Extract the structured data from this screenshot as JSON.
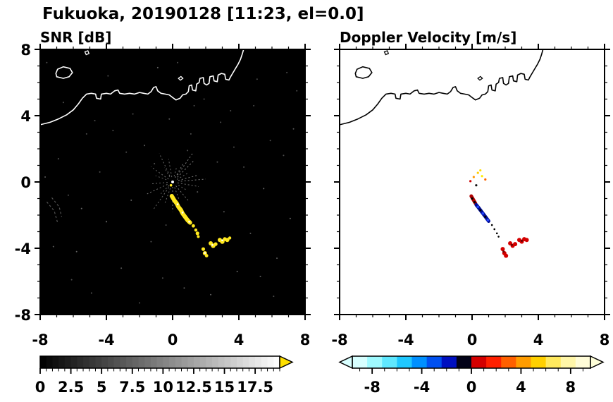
{
  "header": {
    "title": "Fukuoka, 20190128 [11:23, el=0.0]"
  },
  "chart_data": {
    "type": "heatmap",
    "title": "Fukuoka, 20190128 [11:23, el=0.0]",
    "panels": [
      {
        "name": "snr",
        "title": "SNR [dB]",
        "xlim": [
          -8,
          8
        ],
        "ylim": [
          -8,
          8
        ],
        "xticks": [
          -8,
          -4,
          0,
          4,
          8
        ],
        "yticks": [
          -8,
          -4,
          0,
          4,
          8
        ],
        "minor_step": 1,
        "show_ytick_labels": true,
        "background": "#000000",
        "coast_color": "#ffffff",
        "colorbar": {
          "range": [
            0,
            19.5
          ],
          "gradient": [
            "#000000",
            "#ffffff"
          ],
          "segments": 39,
          "ticks": [
            0,
            2.5,
            5,
            7.5,
            10,
            12.5,
            15,
            17.5
          ],
          "minor_step": 0.5,
          "arrow_right_color": "#ffe000",
          "outline": "#000000"
        }
      },
      {
        "name": "velocity",
        "title": "Doppler Velocity [m/s]",
        "xlim": [
          -8,
          8
        ],
        "ylim": [
          -8,
          8
        ],
        "xticks": [
          -8,
          -4,
          0,
          4,
          8
        ],
        "yticks": [
          -8,
          -4,
          0,
          4,
          8
        ],
        "minor_step": 1,
        "show_ytick_labels": false,
        "background": "#ffffff",
        "coast_color": "#000000",
        "colorbar": {
          "range": [
            -9.6,
            9.6
          ],
          "colors": [
            "#d7ffff",
            "#9ffaff",
            "#5fe8ff",
            "#1fc8ff",
            "#0090ff",
            "#0050f0",
            "#0010c0",
            "#020218",
            "#d40000",
            "#ff2000",
            "#ff6000",
            "#ff9c00",
            "#ffd000",
            "#ffe95e",
            "#fff6a8",
            "#fffcd8"
          ],
          "ticks": [
            -8,
            -4,
            0,
            4,
            8
          ],
          "minor_step": 1,
          "arrow_left_color": "#d9ffff",
          "arrow_right_color": "#ffffd9",
          "outline": "#000000"
        }
      }
    ],
    "coastline": {
      "main": [
        [
          -8.0,
          3.45
        ],
        [
          -7.4,
          3.6
        ],
        [
          -6.9,
          3.8
        ],
        [
          -6.4,
          4.05
        ],
        [
          -6.0,
          4.35
        ],
        [
          -5.7,
          4.7
        ],
        [
          -5.45,
          5.05
        ],
        [
          -5.2,
          5.3
        ],
        [
          -4.9,
          5.35
        ],
        [
          -4.65,
          5.3
        ],
        [
          -4.6,
          5.05
        ],
        [
          -4.35,
          5.0
        ],
        [
          -4.3,
          5.3
        ],
        [
          -4.0,
          5.35
        ],
        [
          -3.75,
          5.3
        ],
        [
          -3.5,
          5.5
        ],
        [
          -3.3,
          5.55
        ],
        [
          -3.2,
          5.35
        ],
        [
          -2.9,
          5.3
        ],
        [
          -2.6,
          5.35
        ],
        [
          -2.3,
          5.3
        ],
        [
          -2.0,
          5.4
        ],
        [
          -1.75,
          5.35
        ],
        [
          -1.5,
          5.3
        ],
        [
          -1.3,
          5.45
        ],
        [
          -1.15,
          5.7
        ],
        [
          -1.0,
          5.75
        ],
        [
          -0.9,
          5.5
        ],
        [
          -0.7,
          5.35
        ],
        [
          -0.45,
          5.3
        ],
        [
          -0.2,
          5.25
        ],
        [
          0.0,
          5.1
        ],
        [
          0.2,
          4.95
        ],
        [
          0.45,
          5.05
        ],
        [
          0.6,
          5.25
        ],
        [
          0.8,
          5.3
        ],
        [
          0.95,
          5.45
        ],
        [
          1.0,
          5.8
        ],
        [
          1.15,
          5.85
        ],
        [
          1.2,
          5.55
        ],
        [
          1.4,
          5.5
        ],
        [
          1.45,
          5.9
        ],
        [
          1.6,
          6.0
        ],
        [
          1.65,
          6.25
        ],
        [
          1.85,
          6.3
        ],
        [
          1.9,
          5.95
        ],
        [
          2.05,
          5.85
        ],
        [
          2.2,
          5.95
        ],
        [
          2.25,
          6.35
        ],
        [
          2.45,
          6.4
        ],
        [
          2.5,
          6.1
        ],
        [
          2.7,
          6.05
        ],
        [
          2.75,
          6.45
        ],
        [
          2.95,
          6.55
        ],
        [
          3.15,
          6.5
        ],
        [
          3.2,
          6.2
        ],
        [
          3.4,
          6.15
        ],
        [
          3.5,
          6.35
        ],
        [
          3.65,
          6.6
        ],
        [
          3.8,
          6.85
        ],
        [
          3.95,
          7.1
        ],
        [
          4.1,
          7.4
        ],
        [
          4.2,
          7.7
        ],
        [
          4.3,
          8.05
        ]
      ],
      "island": [
        [
          -7.0,
          6.35
        ],
        [
          -6.6,
          6.25
        ],
        [
          -6.25,
          6.35
        ],
        [
          -6.05,
          6.6
        ],
        [
          -6.2,
          6.85
        ],
        [
          -6.6,
          6.95
        ],
        [
          -6.95,
          6.8
        ],
        [
          -7.05,
          6.55
        ],
        [
          -7.0,
          6.35
        ]
      ],
      "islets": [
        [
          [
            -5.3,
            7.85
          ],
          [
            -5.12,
            7.92
          ],
          [
            -5.05,
            7.75
          ],
          [
            -5.22,
            7.68
          ],
          [
            -5.3,
            7.85
          ]
        ],
        [
          [
            0.35,
            6.25
          ],
          [
            0.5,
            6.36
          ],
          [
            0.62,
            6.25
          ],
          [
            0.47,
            6.14
          ],
          [
            0.35,
            6.25
          ]
        ]
      ]
    },
    "snr_layer": {
      "color": "#ffe81e",
      "streak": [
        [
          -0.05,
          -0.85
        ],
        [
          0.1,
          -1.1
        ],
        [
          0.25,
          -1.3
        ],
        [
          0.35,
          -1.5
        ],
        [
          0.5,
          -1.7
        ],
        [
          0.6,
          -1.9
        ],
        [
          0.75,
          -2.1
        ],
        [
          0.9,
          -2.3
        ],
        [
          1.05,
          -2.45
        ]
      ],
      "blobs": [
        [
          1.25,
          -2.65,
          2.4
        ],
        [
          1.4,
          -2.9,
          2.2
        ],
        [
          1.5,
          -3.1,
          2.6
        ],
        [
          1.55,
          -3.3,
          2.0
        ],
        [
          1.85,
          -4.05,
          2.6
        ],
        [
          1.95,
          -4.3,
          3.0
        ],
        [
          2.05,
          -4.45,
          2.4
        ],
        [
          2.3,
          -3.7,
          3.0
        ],
        [
          2.45,
          -3.85,
          3.2
        ],
        [
          2.6,
          -3.75,
          2.6
        ],
        [
          2.85,
          -3.5,
          3.0
        ],
        [
          3.0,
          -3.6,
          3.2
        ],
        [
          3.15,
          -3.45,
          2.8
        ],
        [
          3.3,
          -3.5,
          3.0
        ],
        [
          3.45,
          -3.38,
          2.2
        ]
      ],
      "white_flecks": [
        [
          0.3,
          -1.35
        ],
        [
          0.6,
          -1.85
        ],
        [
          1.0,
          -2.4
        ],
        [
          2.4,
          -3.8
        ],
        [
          3.0,
          -3.52
        ],
        [
          1.95,
          -4.28
        ]
      ],
      "speckle": [
        [
          -7.6,
          7.2,
          0.3
        ],
        [
          -6.9,
          1.4,
          0.35
        ],
        [
          -6.3,
          -0.8,
          0.3
        ],
        [
          -5.8,
          -4.2,
          0.4
        ],
        [
          -5.2,
          2.9,
          0.3
        ],
        [
          -4.9,
          -6.7,
          0.35
        ],
        [
          -4.4,
          0.6,
          0.3
        ],
        [
          -4.0,
          -2.4,
          0.45
        ],
        [
          -3.6,
          3.1,
          0.3
        ],
        [
          -3.1,
          -5.2,
          0.35
        ],
        [
          -2.8,
          1.8,
          0.3
        ],
        [
          -2.5,
          -1.1,
          0.4
        ],
        [
          -2.0,
          -7.3,
          0.3
        ],
        [
          -1.7,
          2.2,
          0.35
        ],
        [
          -1.3,
          -3.6,
          0.3
        ],
        [
          -0.9,
          6.9,
          0.4
        ],
        [
          -0.6,
          -5.8,
          0.3
        ],
        [
          -0.2,
          3.8,
          0.35
        ],
        [
          0.3,
          7.2,
          0.3
        ],
        [
          0.7,
          -6.4,
          0.4
        ],
        [
          1.1,
          2.9,
          0.3
        ],
        [
          1.5,
          -0.6,
          0.35
        ],
        [
          1.9,
          5.0,
          0.3
        ],
        [
          2.3,
          -6.8,
          0.4
        ],
        [
          2.7,
          1.2,
          0.3
        ],
        [
          3.1,
          -1.8,
          0.35
        ],
        [
          3.5,
          4.3,
          0.3
        ],
        [
          3.9,
          -5.4,
          0.4
        ],
        [
          4.3,
          0.9,
          0.3
        ],
        [
          4.7,
          -3.1,
          0.35
        ],
        [
          5.1,
          6.2,
          0.3
        ],
        [
          5.5,
          -0.4,
          0.4
        ],
        [
          5.9,
          2.5,
          0.3
        ],
        [
          6.3,
          -4.6,
          0.35
        ],
        [
          6.7,
          1.6,
          0.3
        ],
        [
          7.1,
          -2.2,
          0.4
        ],
        [
          7.5,
          5.5,
          0.3
        ],
        [
          -7.2,
          -3.9,
          0.35
        ],
        [
          -6.6,
          4.8,
          0.3
        ],
        [
          -5.5,
          -1.6,
          0.4
        ],
        [
          6.1,
          -6.9,
          0.3
        ],
        [
          7.3,
          3.2,
          0.35
        ],
        [
          -3.9,
          6.4,
          0.3
        ],
        [
          2.9,
          3.6,
          0.3
        ],
        [
          -1.1,
          1.1,
          0.35
        ],
        [
          0.9,
          1.9,
          0.3
        ],
        [
          4.9,
          4.6,
          0.3
        ],
        [
          -2.4,
          4.1,
          0.3
        ],
        [
          5.3,
          -5.7,
          0.35
        ],
        [
          -0.4,
          -2.6,
          0.3
        ],
        [
          1.3,
          4.6,
          0.3
        ],
        [
          -4.7,
          3.7,
          0.3
        ],
        [
          3.7,
          2.1,
          0.3
        ],
        [
          -6.1,
          -5.9,
          0.3
        ],
        [
          6.9,
          6.6,
          0.3
        ],
        [
          -7.7,
          0.3,
          0.35
        ]
      ],
      "rays": [
        [
          15,
          0.35,
          1.5,
          0.5
        ],
        [
          30,
          0.3,
          1.1,
          0.4
        ],
        [
          45,
          0.4,
          1.8,
          0.5
        ],
        [
          60,
          0.3,
          1.3,
          0.45
        ],
        [
          75,
          0.35,
          0.9,
          0.4
        ],
        [
          100,
          0.3,
          1.4,
          0.4
        ],
        [
          120,
          0.35,
          1.0,
          0.35
        ],
        [
          145,
          0.3,
          1.6,
          0.4
        ],
        [
          160,
          0.4,
          1.1,
          0.35
        ],
        [
          185,
          0.3,
          1.3,
          0.4
        ],
        [
          205,
          0.35,
          1.7,
          0.45
        ],
        [
          225,
          0.3,
          1.0,
          0.4
        ],
        [
          250,
          0.4,
          1.4,
          0.4
        ],
        [
          270,
          0.3,
          1.8,
          0.45
        ],
        [
          290,
          0.35,
          1.2,
          0.4
        ],
        [
          310,
          0.3,
          1.5,
          0.45
        ],
        [
          330,
          0.4,
          1.0,
          0.4
        ],
        [
          350,
          0.3,
          1.6,
          0.45
        ],
        [
          5,
          0.5,
          2.0,
          0.5
        ],
        [
          55,
          0.5,
          2.1,
          0.5
        ],
        [
          235,
          0.4,
          2.0,
          0.4
        ],
        [
          115,
          0.4,
          1.9,
          0.4
        ]
      ],
      "arcs": [
        [
          [
            -7.6,
            -1.2
          ],
          [
            -7.15,
            -1.75
          ],
          [
            -6.95,
            -2.45
          ]
        ],
        [
          [
            -7.3,
            -0.95
          ],
          [
            -6.85,
            -1.5
          ],
          [
            -6.7,
            -2.1
          ]
        ]
      ],
      "center_dot": [
        0,
        0
      ],
      "center_mark": [
        -0.1,
        -0.2
      ]
    },
    "velocity_layer": {
      "red": "#b00000",
      "blue": "#000d96",
      "bright_blue": "#2244ff",
      "blob_red": "#d40000",
      "dark_red": "#6e0000",
      "red_top": [
        [
          -0.05,
          -0.85
        ],
        [
          0.08,
          -1.08
        ],
        [
          0.2,
          -1.28
        ]
      ],
      "red_top_dark": [
        [
          0.0,
          -1.0
        ],
        [
          0.15,
          -1.22
        ]
      ],
      "blue_mid": [
        [
          0.25,
          -1.38
        ],
        [
          0.4,
          -1.56
        ],
        [
          0.55,
          -1.76
        ],
        [
          0.7,
          -1.96
        ],
        [
          0.85,
          -2.16
        ],
        [
          1.0,
          -2.36
        ]
      ],
      "blue_bright": [
        [
          0.35,
          -1.5
        ],
        [
          0.65,
          -1.9
        ],
        [
          0.95,
          -2.3
        ]
      ],
      "blue_dark_dots": [
        [
          0.5,
          -1.7
        ],
        [
          0.8,
          -2.1
        ]
      ],
      "black_dots": [
        [
          1.2,
          -2.6
        ],
        [
          1.35,
          -2.85
        ],
        [
          1.5,
          -3.1
        ],
        [
          1.6,
          -3.3
        ]
      ],
      "red_blobs": [
        [
          1.85,
          -4.05
        ],
        [
          1.95,
          -4.3
        ],
        [
          2.05,
          -4.45
        ],
        [
          2.3,
          -3.7
        ],
        [
          2.45,
          -3.85
        ],
        [
          2.6,
          -3.75
        ],
        [
          2.85,
          -3.5
        ],
        [
          3.0,
          -3.6
        ],
        [
          3.15,
          -3.45
        ],
        [
          3.3,
          -3.5
        ]
      ],
      "dark_red_dots": [
        [
          1.9,
          -4.2
        ],
        [
          2.4,
          -3.8
        ],
        [
          3.0,
          -3.55
        ]
      ],
      "scatter": [
        [
          0.1,
          0.3,
          "#ff9900"
        ],
        [
          0.35,
          0.55,
          "#ffcc00"
        ],
        [
          0.6,
          0.35,
          "#ffee00"
        ],
        [
          0.8,
          0.15,
          "#ff6600"
        ],
        [
          -0.1,
          0.05,
          "#cc0000"
        ],
        [
          0.5,
          0.7,
          "#ffdd00"
        ],
        [
          0.25,
          -0.2,
          "#111111"
        ]
      ]
    }
  }
}
